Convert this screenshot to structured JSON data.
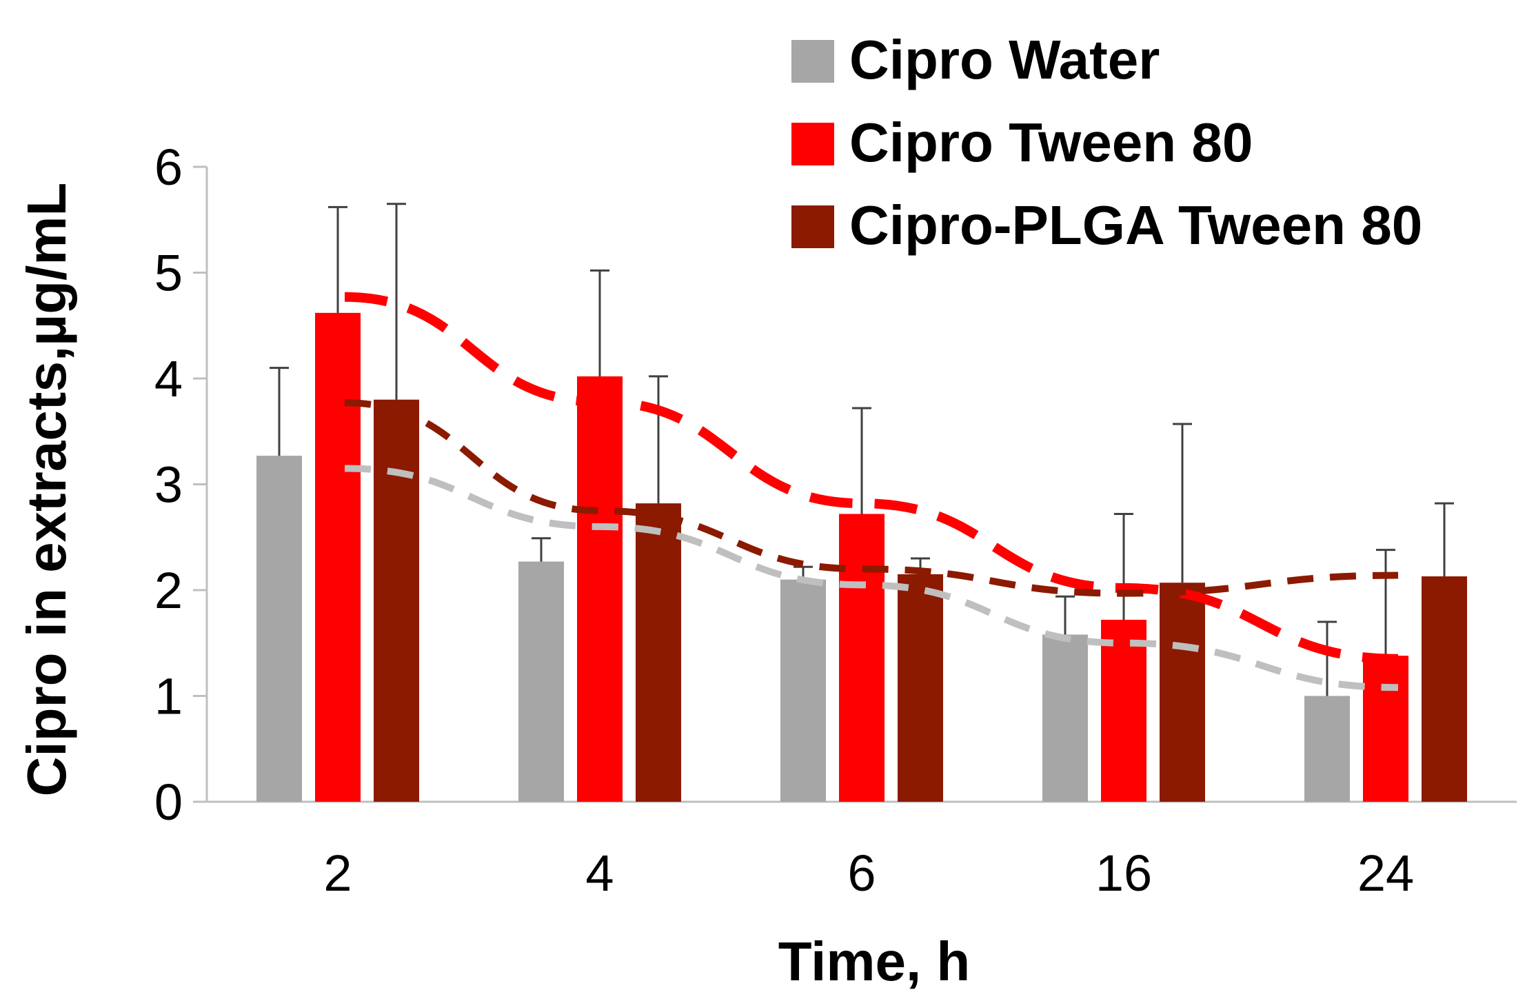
{
  "chart_data": {
    "type": "bar",
    "title": "",
    "xlabel": "Time, h",
    "ylabel": "Cipro in extracts,µg/mL",
    "categories": [
      "2",
      "4",
      "6",
      "16",
      "24"
    ],
    "ylim": [
      0,
      6
    ],
    "yticks": [
      "0",
      "1",
      "2",
      "3",
      "4",
      "5",
      "6"
    ],
    "grid": false,
    "legend_position": "top-right",
    "series": [
      {
        "name": "Cipro Water",
        "color": "#A6A6A6",
        "values": [
          3.27,
          2.27,
          2.1,
          1.58,
          1.0
        ],
        "error": [
          0.83,
          0.22,
          0.12,
          0.36,
          0.7
        ],
        "trend": [
          3.15,
          2.6,
          2.05,
          1.5,
          1.08
        ],
        "trend_color": "#BFBFBF"
      },
      {
        "name": "Cipro Tween 80",
        "color": "#FF0000",
        "values": [
          4.62,
          4.02,
          2.72,
          1.72,
          1.38
        ],
        "error": [
          1.0,
          1.0,
          1.0,
          1.0,
          1.0
        ],
        "trend": [
          4.77,
          3.78,
          2.82,
          2.02,
          1.35
        ],
        "trend_color": "#FF0000"
      },
      {
        "name": "Cipro-PLGA Tween 80",
        "color": "#8B1A00",
        "values": [
          3.8,
          2.82,
          2.15,
          2.07,
          2.13
        ],
        "error": [
          1.85,
          1.2,
          0.15,
          1.5,
          0.69
        ],
        "trend": [
          3.77,
          2.75,
          2.2,
          1.97,
          2.14
        ],
        "trend_color": "#8B1A00"
      }
    ]
  }
}
